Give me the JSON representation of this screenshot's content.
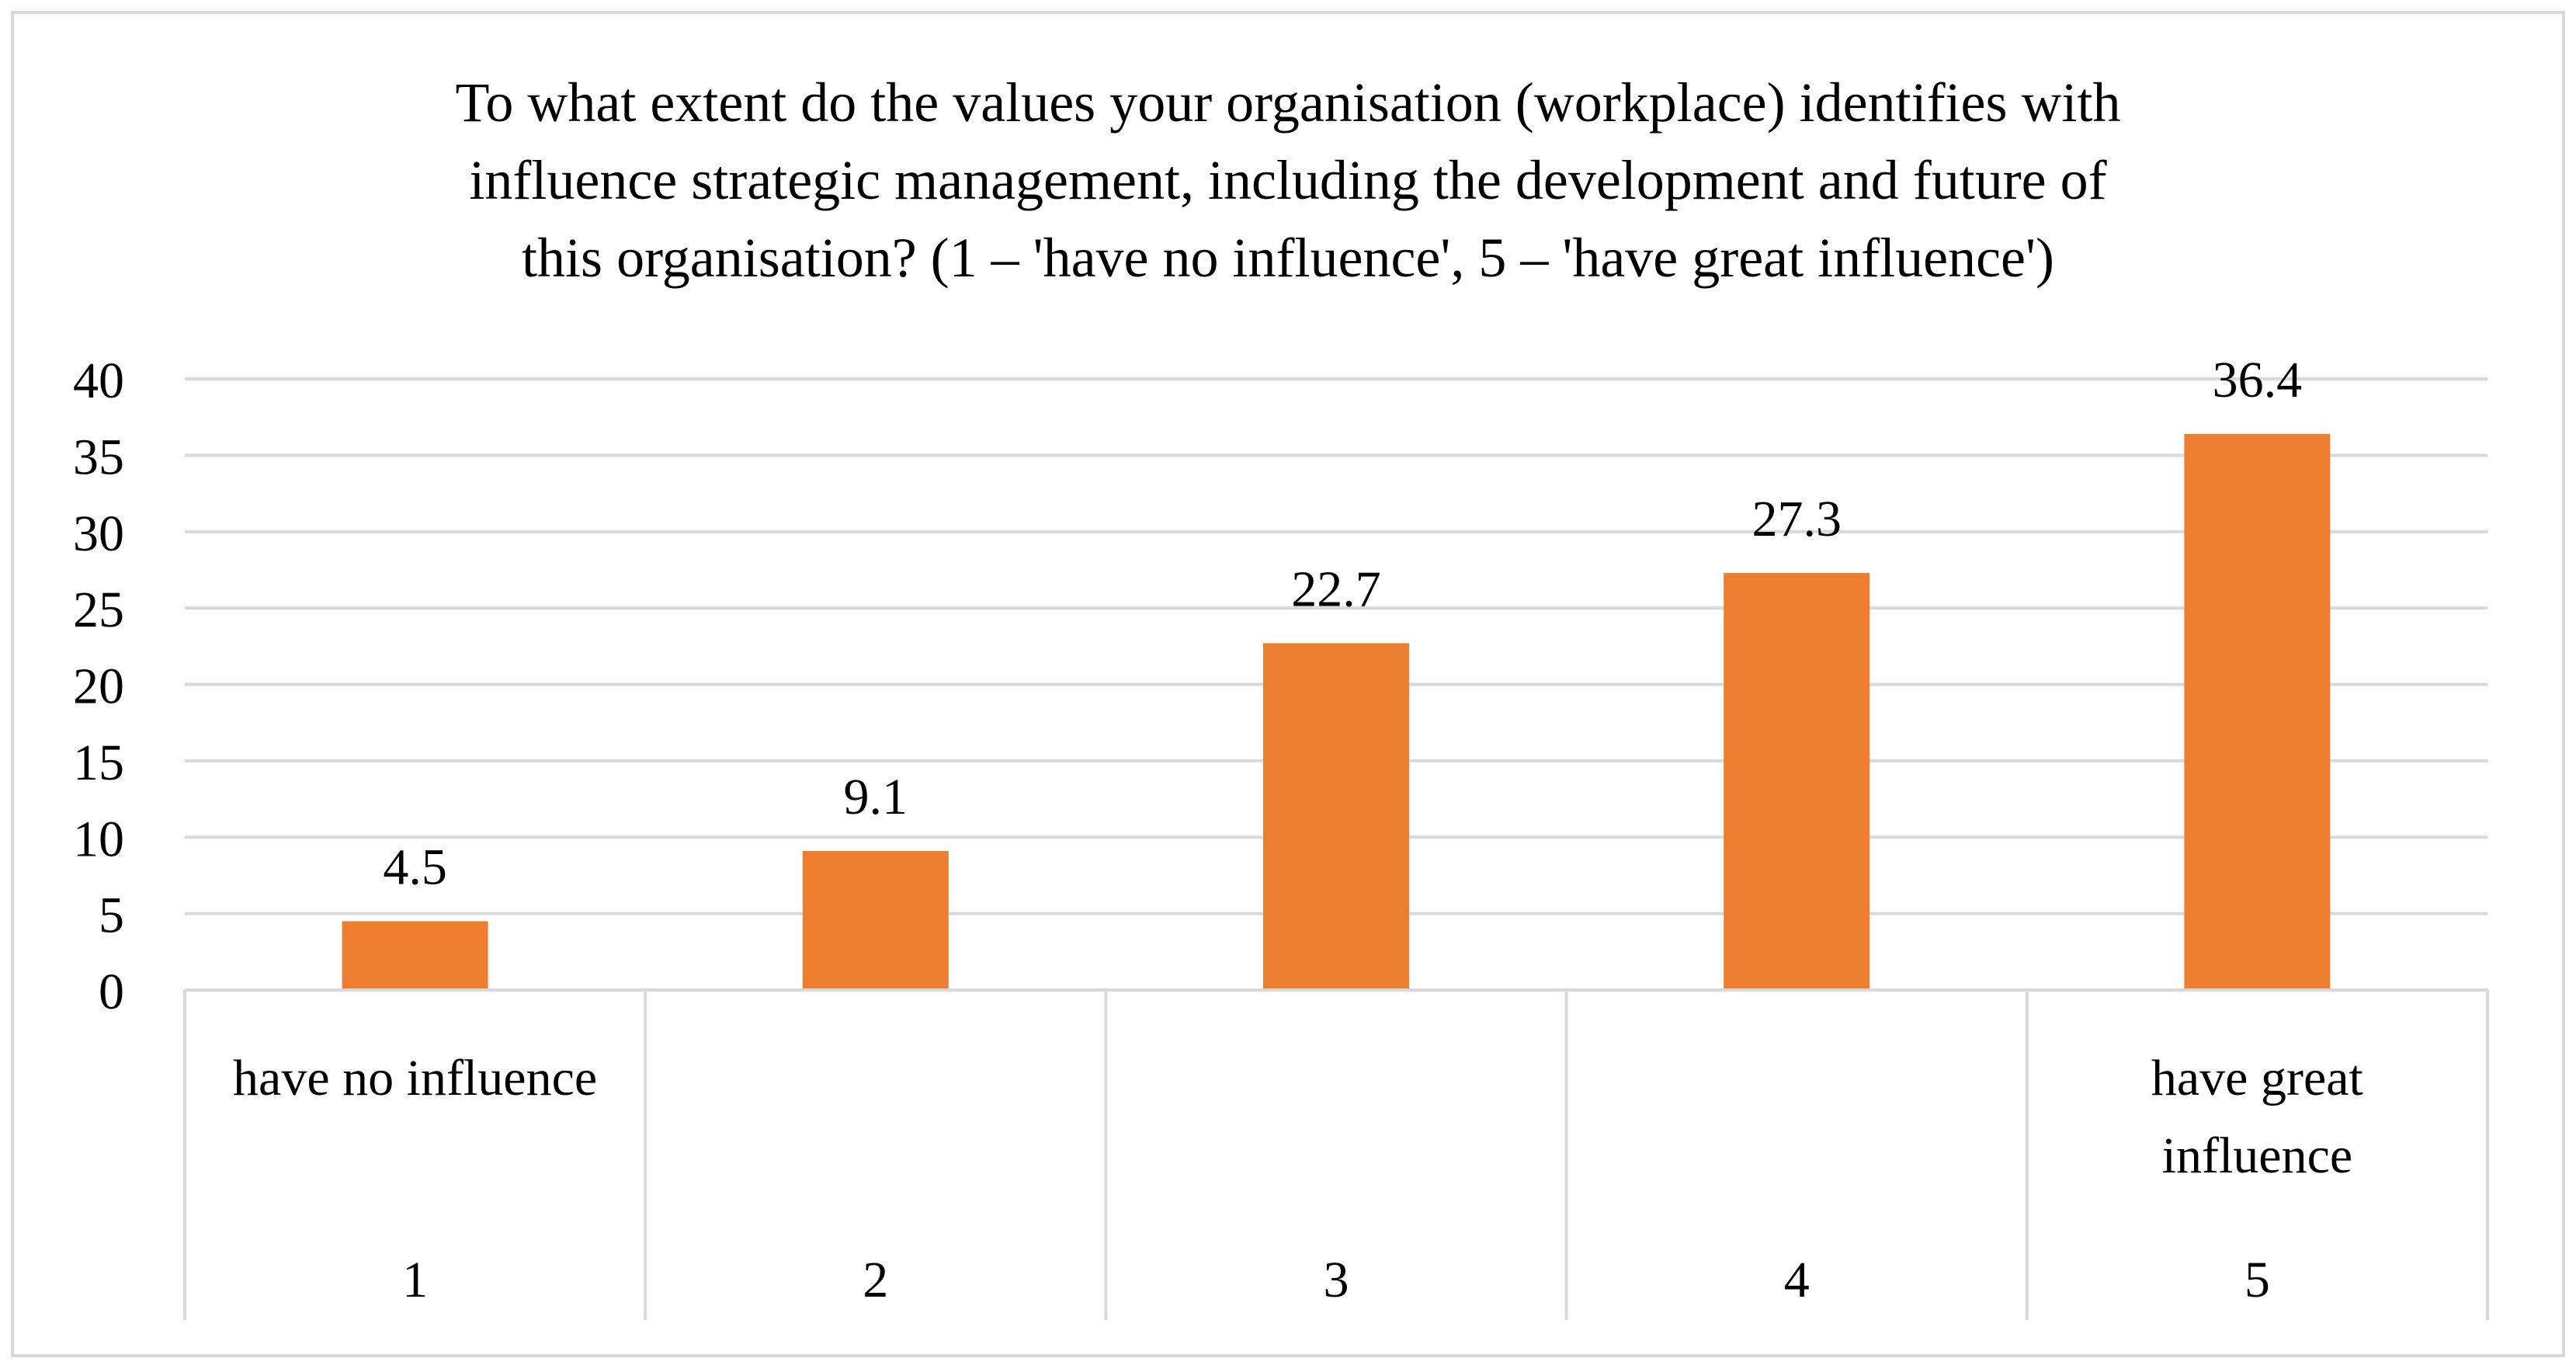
{
  "chart_data": {
    "type": "bar",
    "title_lines": [
      "To what extent do the values your organisation (workplace) identifies with",
      "influence strategic management, including the development and future of",
      "this organisation?  (1 – 'have no influence', 5 – 'have great influence')"
    ],
    "xlabel": "",
    "ylabel": "",
    "categories": [
      "1",
      "2",
      "3",
      "4",
      "5"
    ],
    "category_sublabels": [
      "have no influence",
      "",
      "",
      "",
      "have great influence"
    ],
    "values": [
      4.5,
      9.1,
      22.7,
      27.3,
      36.4
    ],
    "data_labels": [
      "4.5",
      "9.1",
      "22.7",
      "27.3",
      "36.4"
    ],
    "ylim": [
      0,
      40
    ],
    "yticks": [
      0,
      5,
      10,
      15,
      20,
      25,
      30,
      35,
      40
    ],
    "grid": true,
    "legend": "none",
    "bar_color": "#ED7D31",
    "grid_color": "#D9D9D9"
  }
}
